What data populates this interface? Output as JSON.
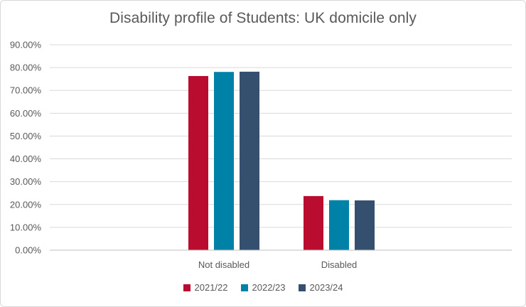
{
  "chart_data": {
    "type": "bar",
    "title": "Disability profile of Students: UK domicile only",
    "categories": [
      "Not disabled",
      "Disabled"
    ],
    "series": [
      {
        "name": "2021/22",
        "values": [
          76.3,
          23.7
        ],
        "color": "#BA0C2F"
      },
      {
        "name": "2022/23",
        "values": [
          78.1,
          21.9
        ],
        "color": "#0081A8"
      },
      {
        "name": "2023/24",
        "values": [
          78.2,
          21.8
        ],
        "color": "#34506E"
      }
    ],
    "ylim": [
      0,
      90
    ],
    "yticks": [
      0,
      10,
      20,
      30,
      40,
      50,
      60,
      70,
      80,
      90
    ],
    "ytick_labels": [
      "0.00%",
      "10.00%",
      "20.00%",
      "30.00%",
      "40.00%",
      "50.00%",
      "60.00%",
      "70.00%",
      "80.00%",
      "90.00%"
    ],
    "grid": true,
    "legend_position": "bottom"
  }
}
